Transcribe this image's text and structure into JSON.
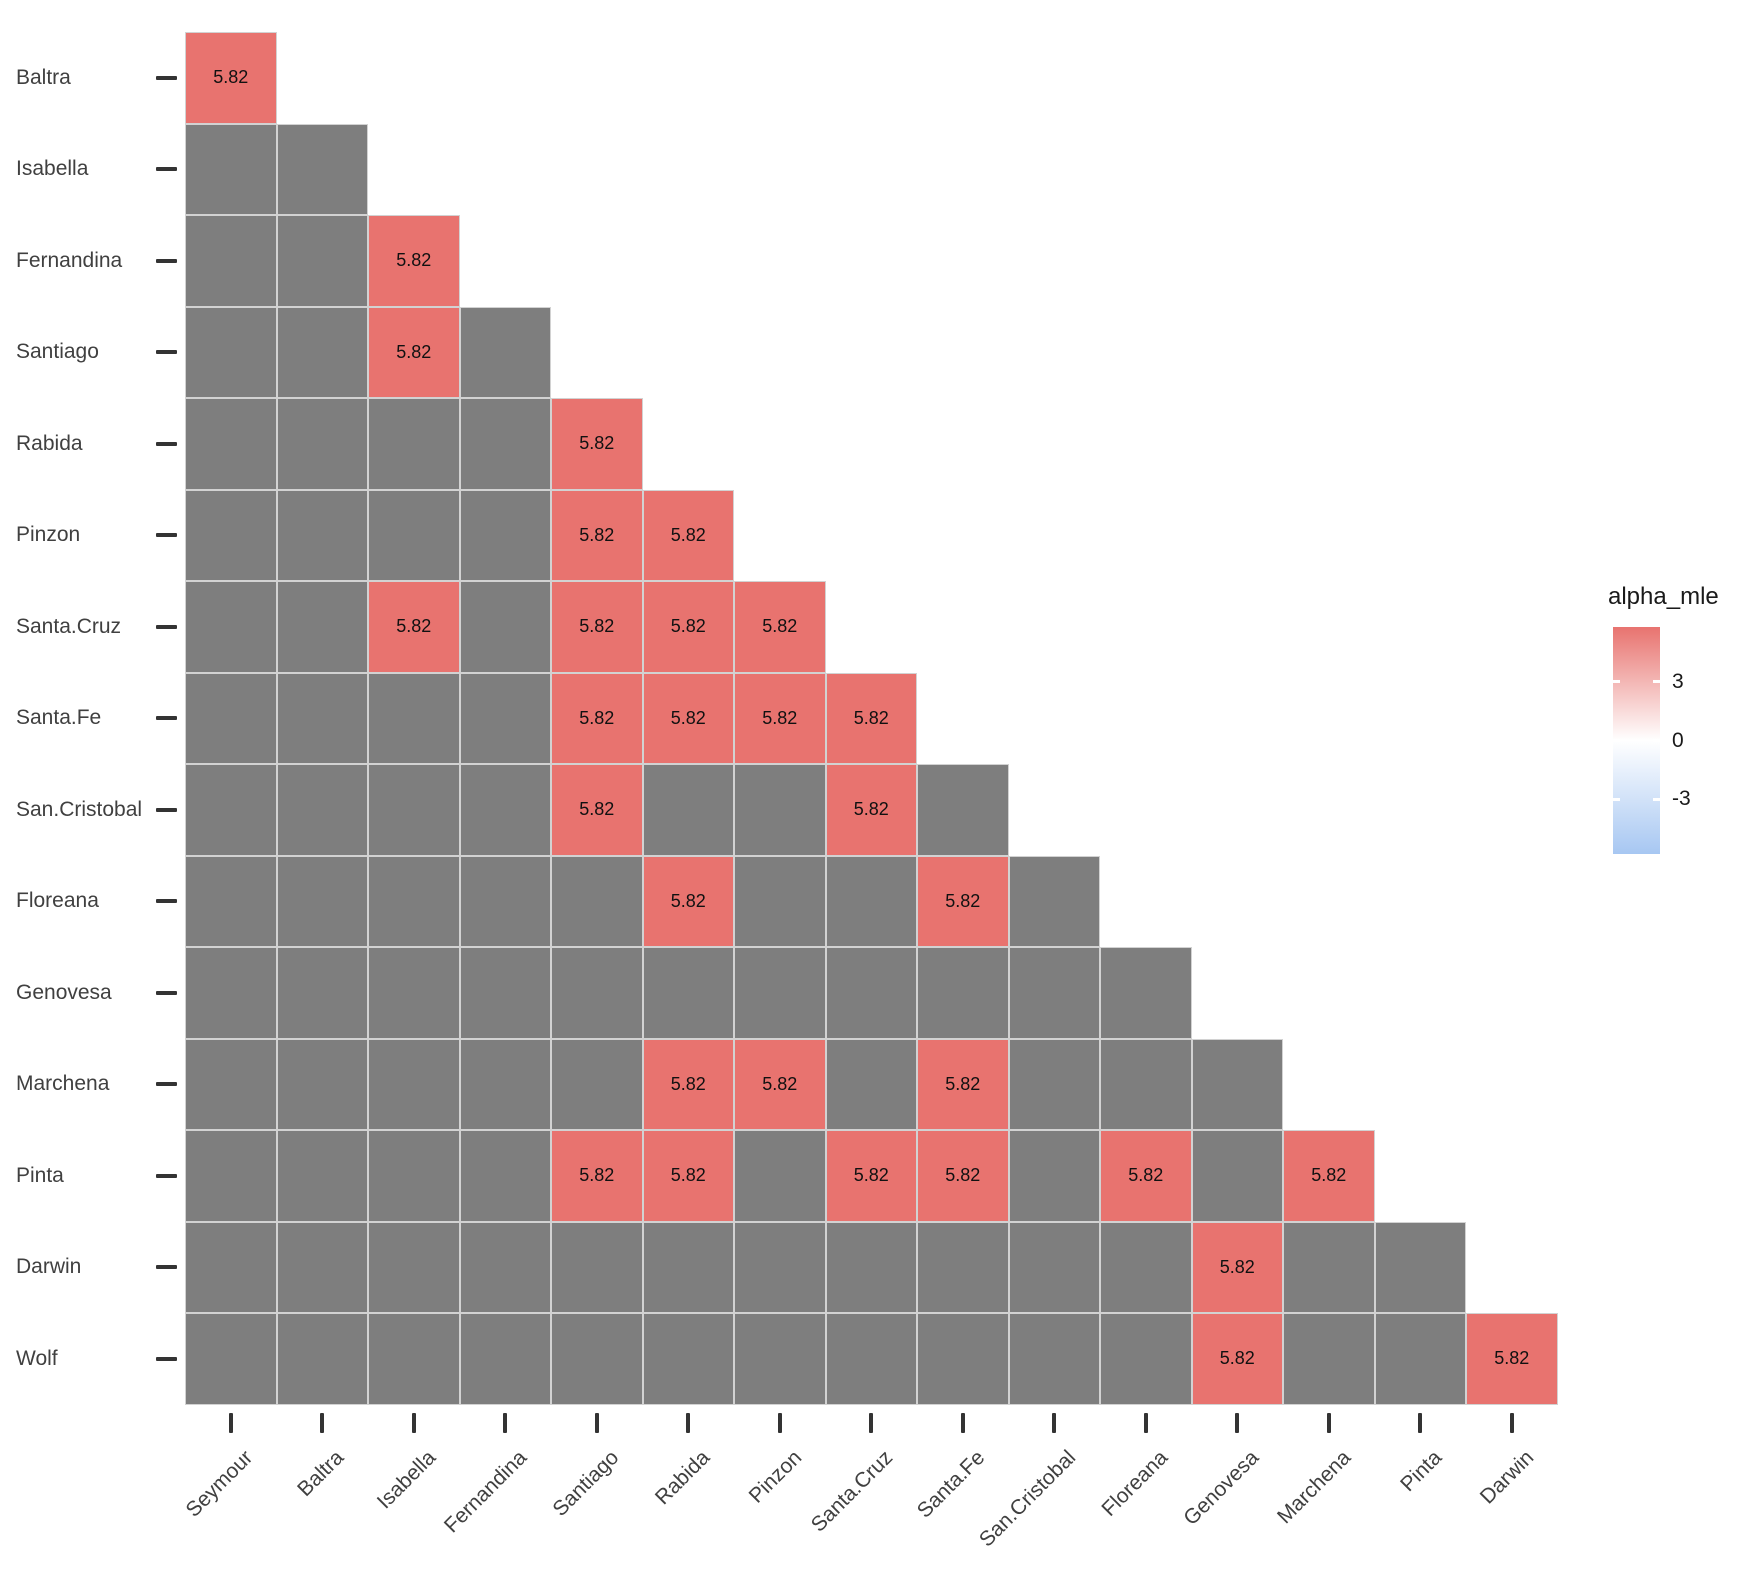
{
  "chart_data": {
    "type": "heatmap",
    "title": "",
    "shape": "lower-triangle",
    "grid": true,
    "x_categories": [
      "Seymour",
      "Baltra",
      "Isabella",
      "Fernandina",
      "Santiago",
      "Rabida",
      "Pinzon",
      "Santa.Cruz",
      "Santa.Fe",
      "San.Cristobal",
      "Floreana",
      "Genovesa",
      "Marchena",
      "Pinta",
      "Darwin"
    ],
    "y_categories": [
      "Baltra",
      "Isabella",
      "Fernandina",
      "Santiago",
      "Rabida",
      "Pinzon",
      "Santa.Cruz",
      "Santa.Fe",
      "San.Cristobal",
      "Floreana",
      "Genovesa",
      "Marchena",
      "Pinta",
      "Darwin",
      "Wolf"
    ],
    "rows": [
      {
        "name": "Baltra",
        "values": [
          5.82
        ]
      },
      {
        "name": "Isabella",
        "values": [
          null,
          null
        ]
      },
      {
        "name": "Fernandina",
        "values": [
          null,
          null,
          5.82
        ]
      },
      {
        "name": "Santiago",
        "values": [
          null,
          null,
          5.82,
          null
        ]
      },
      {
        "name": "Rabida",
        "values": [
          null,
          null,
          null,
          null,
          5.82
        ]
      },
      {
        "name": "Pinzon",
        "values": [
          null,
          null,
          null,
          null,
          5.82,
          5.82
        ]
      },
      {
        "name": "Santa.Cruz",
        "values": [
          null,
          null,
          5.82,
          null,
          5.82,
          5.82,
          5.82
        ]
      },
      {
        "name": "Santa.Fe",
        "values": [
          null,
          null,
          null,
          null,
          5.82,
          5.82,
          5.82,
          5.82
        ]
      },
      {
        "name": "San.Cristobal",
        "values": [
          null,
          null,
          null,
          null,
          5.82,
          null,
          null,
          5.82,
          null
        ]
      },
      {
        "name": "Floreana",
        "values": [
          null,
          null,
          null,
          null,
          null,
          5.82,
          null,
          null,
          5.82,
          null
        ]
      },
      {
        "name": "Genovesa",
        "values": [
          null,
          null,
          null,
          null,
          null,
          null,
          null,
          null,
          null,
          null,
          null
        ]
      },
      {
        "name": "Marchena",
        "values": [
          null,
          null,
          null,
          null,
          null,
          5.82,
          5.82,
          null,
          5.82,
          null,
          null,
          null
        ]
      },
      {
        "name": "Pinta",
        "values": [
          null,
          null,
          null,
          null,
          5.82,
          5.82,
          null,
          5.82,
          5.82,
          null,
          5.82,
          null,
          5.82
        ]
      },
      {
        "name": "Darwin",
        "values": [
          null,
          null,
          null,
          null,
          null,
          null,
          null,
          null,
          null,
          null,
          null,
          5.82,
          null,
          null
        ]
      },
      {
        "name": "Wolf",
        "values": [
          null,
          null,
          null,
          null,
          null,
          null,
          null,
          null,
          null,
          null,
          null,
          5.82,
          null,
          null,
          5.82
        ]
      }
    ],
    "cell_value_label": "5.82",
    "colors": {
      "na_cell": "#7E7E7E",
      "value_cell": "#E8736F",
      "grid_line": "#D2D2D2",
      "axis_text": "#404040",
      "tick_mark": "#333333"
    },
    "legend": {
      "title": "alpha_mle",
      "ticks": [
        "3",
        "0",
        "-3"
      ],
      "tick_values": [
        3,
        0,
        -3
      ],
      "range": [
        -5.82,
        5.82
      ],
      "gradient_top": "#E8736F",
      "gradient_mid": "#FFFFFF",
      "gradient_bottom": "#A7C7F2",
      "position": "right"
    }
  }
}
